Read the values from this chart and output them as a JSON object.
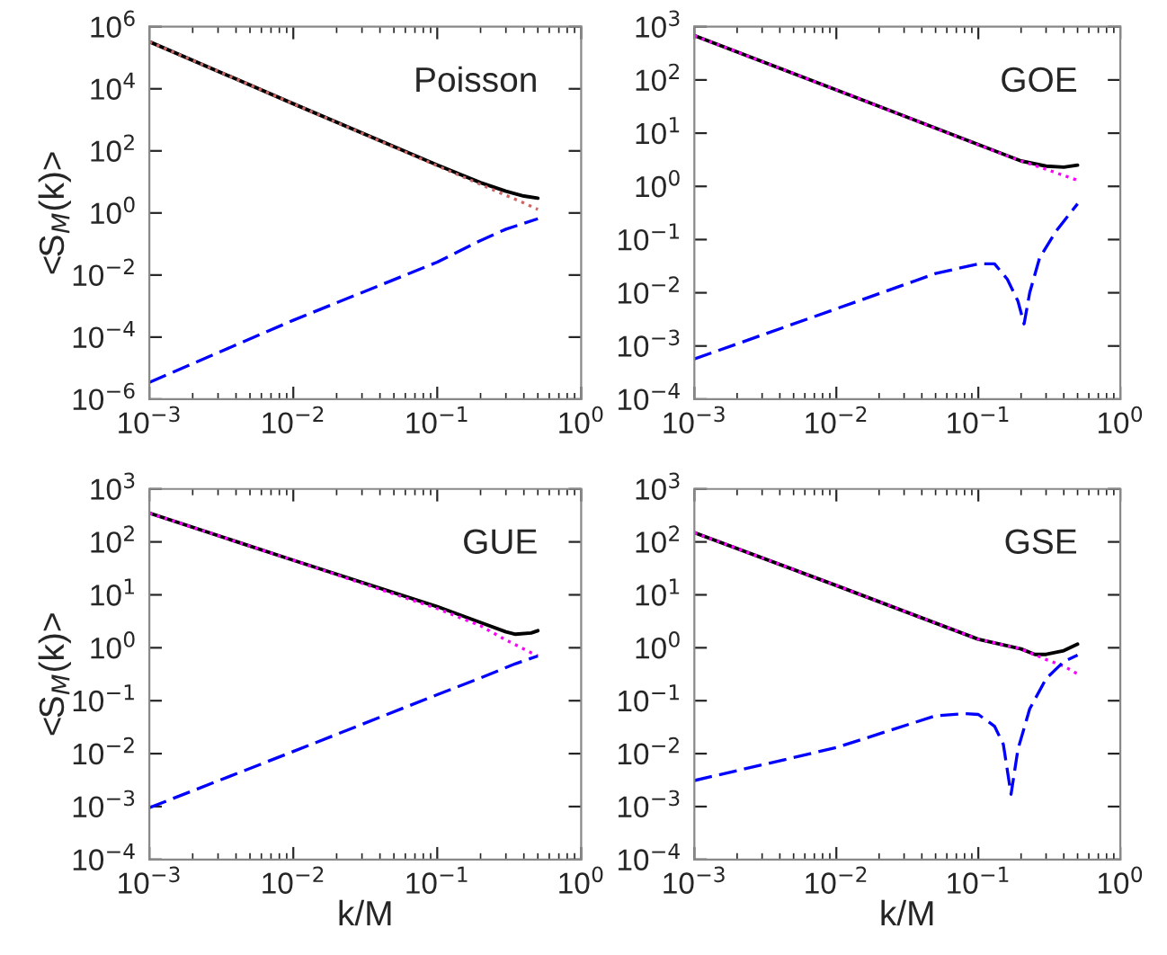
{
  "chart_data": [
    {
      "type": "line",
      "title": "Poisson",
      "ylabel": "<S$_{M}$(k)>",
      "log": "xy",
      "tick_labels": "xy",
      "grid": false,
      "xlim": [
        0.001,
        1
      ],
      "xticks": [
        {
          "value": 0.001,
          "label": "10$^{−3}$"
        },
        {
          "value": 0.01,
          "label": "10$^{−2}$"
        },
        {
          "value": 0.1,
          "label": "10$^{−1}$"
        },
        {
          "value": 1,
          "label": "10$^{0}$"
        }
      ],
      "ylim": [
        1e-06,
        1000000.0
      ],
      "yticks": [
        {
          "value": 1e-06,
          "label": "10$^{−6}$"
        },
        {
          "value": 0.0001,
          "label": "10$^{−4}$"
        },
        {
          "value": 0.01,
          "label": "10$^{−2}$"
        },
        {
          "value": 1,
          "label": "10$^{0}$"
        },
        {
          "value": 100,
          "label": "10$^{2}$"
        },
        {
          "value": 10000,
          "label": "10$^{4}$"
        },
        {
          "value": 1000000,
          "label": "10$^{6}$"
        }
      ],
      "series": [
        {
          "color": "#000000",
          "line_style": "solid",
          "x": [
            0.001,
            0.01,
            0.1,
            0.2,
            0.3,
            0.4,
            0.5
          ],
          "values": [
            330000,
            3300,
            35,
            9.5,
            5,
            3.5,
            3.0
          ]
        },
        {
          "color": "#cc6666",
          "line_style": "dotted",
          "x": [
            0.001,
            0.01,
            0.1,
            0.2,
            0.3,
            0.4,
            0.5
          ],
          "values": [
            330000,
            3300,
            33,
            8.3,
            3.7,
            2.1,
            1.3
          ]
        },
        {
          "color": "#0000ff",
          "line_style": "dashed",
          "x": [
            0.001,
            0.01,
            0.1,
            0.2,
            0.3,
            0.5
          ],
          "values": [
            3.5e-06,
            0.00035,
            0.026,
            0.13,
            0.3,
            0.65
          ]
        }
      ]
    },
    {
      "type": "line",
      "title": "GOE",
      "log": "xy",
      "grid": false,
      "xlim": [
        0.001,
        1
      ],
      "xticks": [
        {
          "value": 0.001,
          "label": "10$^{−3}$"
        },
        {
          "value": 0.01,
          "label": "10$^{−2}$"
        },
        {
          "value": 0.1,
          "label": "10$^{−1}$"
        },
        {
          "value": 1,
          "label": "10$^{0}$"
        }
      ],
      "ylim": [
        0.0001,
        1000
      ],
      "yticks": [
        {
          "value": 0.0001,
          "label": "10$^{−4}$"
        },
        {
          "value": 0.001,
          "label": "10$^{−3}$"
        },
        {
          "value": 0.01,
          "label": "10$^{−2}$"
        },
        {
          "value": 0.1,
          "label": "10$^{−1}$"
        },
        {
          "value": 1,
          "label": "10$^{0}$"
        },
        {
          "value": 10,
          "label": "10$^{1}$"
        },
        {
          "value": 100,
          "label": "10$^{2}$"
        },
        {
          "value": 1000,
          "label": "10$^{3}$"
        }
      ],
      "series": [
        {
          "color": "#000000",
          "line_style": "solid",
          "x": [
            0.001,
            0.01,
            0.1,
            0.2,
            0.3,
            0.4,
            0.5
          ],
          "values": [
            680,
            65,
            6.1,
            3.0,
            2.4,
            2.3,
            2.5
          ]
        },
        {
          "color": "#ff00ff",
          "line_style": "dotted",
          "x": [
            0.001,
            0.01,
            0.1,
            0.2,
            0.3,
            0.4,
            0.5
          ],
          "values": [
            680,
            65,
            6,
            3.0,
            2.1,
            1.6,
            1.3
          ]
        },
        {
          "color": "#0000ff",
          "line_style": "dashed",
          "x": [
            0.001,
            0.01,
            0.05,
            0.1,
            0.13,
            0.16,
            0.19,
            0.21,
            0.23,
            0.27,
            0.35,
            0.5
          ],
          "values": [
            0.00057,
            0.005,
            0.023,
            0.035,
            0.035,
            0.018,
            0.007,
            0.0026,
            0.01,
            0.045,
            0.14,
            0.47
          ]
        }
      ]
    },
    {
      "type": "line",
      "title": "GUE",
      "xlabel": "k/M",
      "ylabel": "<S$_{M}$(k)>",
      "log": "xy",
      "grid": false,
      "xlim": [
        0.001,
        1
      ],
      "xticks": [
        {
          "value": 0.001,
          "label": "10$^{−3}$"
        },
        {
          "value": 0.01,
          "label": "10$^{−2}$"
        },
        {
          "value": 0.1,
          "label": "10$^{−1}$"
        },
        {
          "value": 1,
          "label": "10$^{0}$"
        }
      ],
      "ylim": [
        0.0001,
        1000
      ],
      "yticks": [
        {
          "value": 0.0001,
          "label": "10$^{−4}$"
        },
        {
          "value": 0.001,
          "label": "10$^{−3}$"
        },
        {
          "value": 0.01,
          "label": "10$^{−2}$"
        },
        {
          "value": 0.1,
          "label": "10$^{−1}$"
        },
        {
          "value": 1,
          "label": "10$^{0}$"
        },
        {
          "value": 10,
          "label": "10$^{1}$"
        },
        {
          "value": 100,
          "label": "10$^{2}$"
        },
        {
          "value": 1000,
          "label": "10$^{3}$"
        }
      ],
      "series": [
        {
          "color": "#000000",
          "line_style": "solid",
          "x": [
            0.001,
            0.01,
            0.1,
            0.2,
            0.3,
            0.35,
            0.45,
            0.5
          ],
          "values": [
            350,
            45,
            6,
            3.0,
            2.0,
            1.8,
            1.9,
            2.1
          ]
        },
        {
          "color": "#ff00ff",
          "line_style": "dotted",
          "x": [
            0.001,
            0.01,
            0.1,
            0.2,
            0.3,
            0.4,
            0.5
          ],
          "values": [
            350,
            45,
            5.5,
            2.6,
            1.4,
            0.95,
            0.7
          ]
        },
        {
          "color": "#0000ff",
          "line_style": "dashed",
          "x": [
            0.001,
            0.01,
            0.1,
            0.2,
            0.35,
            0.5
          ],
          "values": [
            0.00095,
            0.011,
            0.13,
            0.27,
            0.5,
            0.7
          ]
        }
      ]
    },
    {
      "type": "line",
      "title": "GSE",
      "xlabel": "k/M",
      "log": "xy",
      "grid": false,
      "xlim": [
        0.001,
        1
      ],
      "xticks": [
        {
          "value": 0.001,
          "label": "10$^{−3}$"
        },
        {
          "value": 0.01,
          "label": "10$^{−2}$"
        },
        {
          "value": 0.1,
          "label": "10$^{−1}$"
        },
        {
          "value": 1,
          "label": "10$^{0}$"
        }
      ],
      "ylim": [
        0.0001,
        1000
      ],
      "yticks": [
        {
          "value": 0.0001,
          "label": "10$^{−4}$"
        },
        {
          "value": 0.001,
          "label": "10$^{−3}$"
        },
        {
          "value": 0.01,
          "label": "10$^{−2}$"
        },
        {
          "value": 0.1,
          "label": "10$^{−1}$"
        },
        {
          "value": 1,
          "label": "10$^{0}$"
        },
        {
          "value": 10,
          "label": "10$^{1}$"
        },
        {
          "value": 100,
          "label": "10$^{2}$"
        },
        {
          "value": 1000,
          "label": "10$^{3}$"
        }
      ],
      "series": [
        {
          "color": "#000000",
          "line_style": "solid",
          "x": [
            0.001,
            0.01,
            0.1,
            0.2,
            0.25,
            0.3,
            0.4,
            0.5
          ],
          "values": [
            150,
            15,
            1.45,
            0.95,
            0.75,
            0.75,
            0.88,
            1.17
          ]
        },
        {
          "color": "#ff00ff",
          "line_style": "dotted",
          "x": [
            0.001,
            0.01,
            0.1,
            0.2,
            0.3,
            0.4,
            0.5
          ],
          "values": [
            150,
            15,
            1.45,
            0.95,
            0.6,
            0.45,
            0.32
          ]
        },
        {
          "color": "#0000ff",
          "line_style": "dashed",
          "x": [
            0.001,
            0.01,
            0.05,
            0.08,
            0.1,
            0.13,
            0.15,
            0.17,
            0.19,
            0.23,
            0.3,
            0.4,
            0.5
          ],
          "values": [
            0.0031,
            0.013,
            0.052,
            0.057,
            0.055,
            0.033,
            0.015,
            0.0017,
            0.012,
            0.07,
            0.26,
            0.55,
            0.73
          ]
        }
      ]
    }
  ]
}
